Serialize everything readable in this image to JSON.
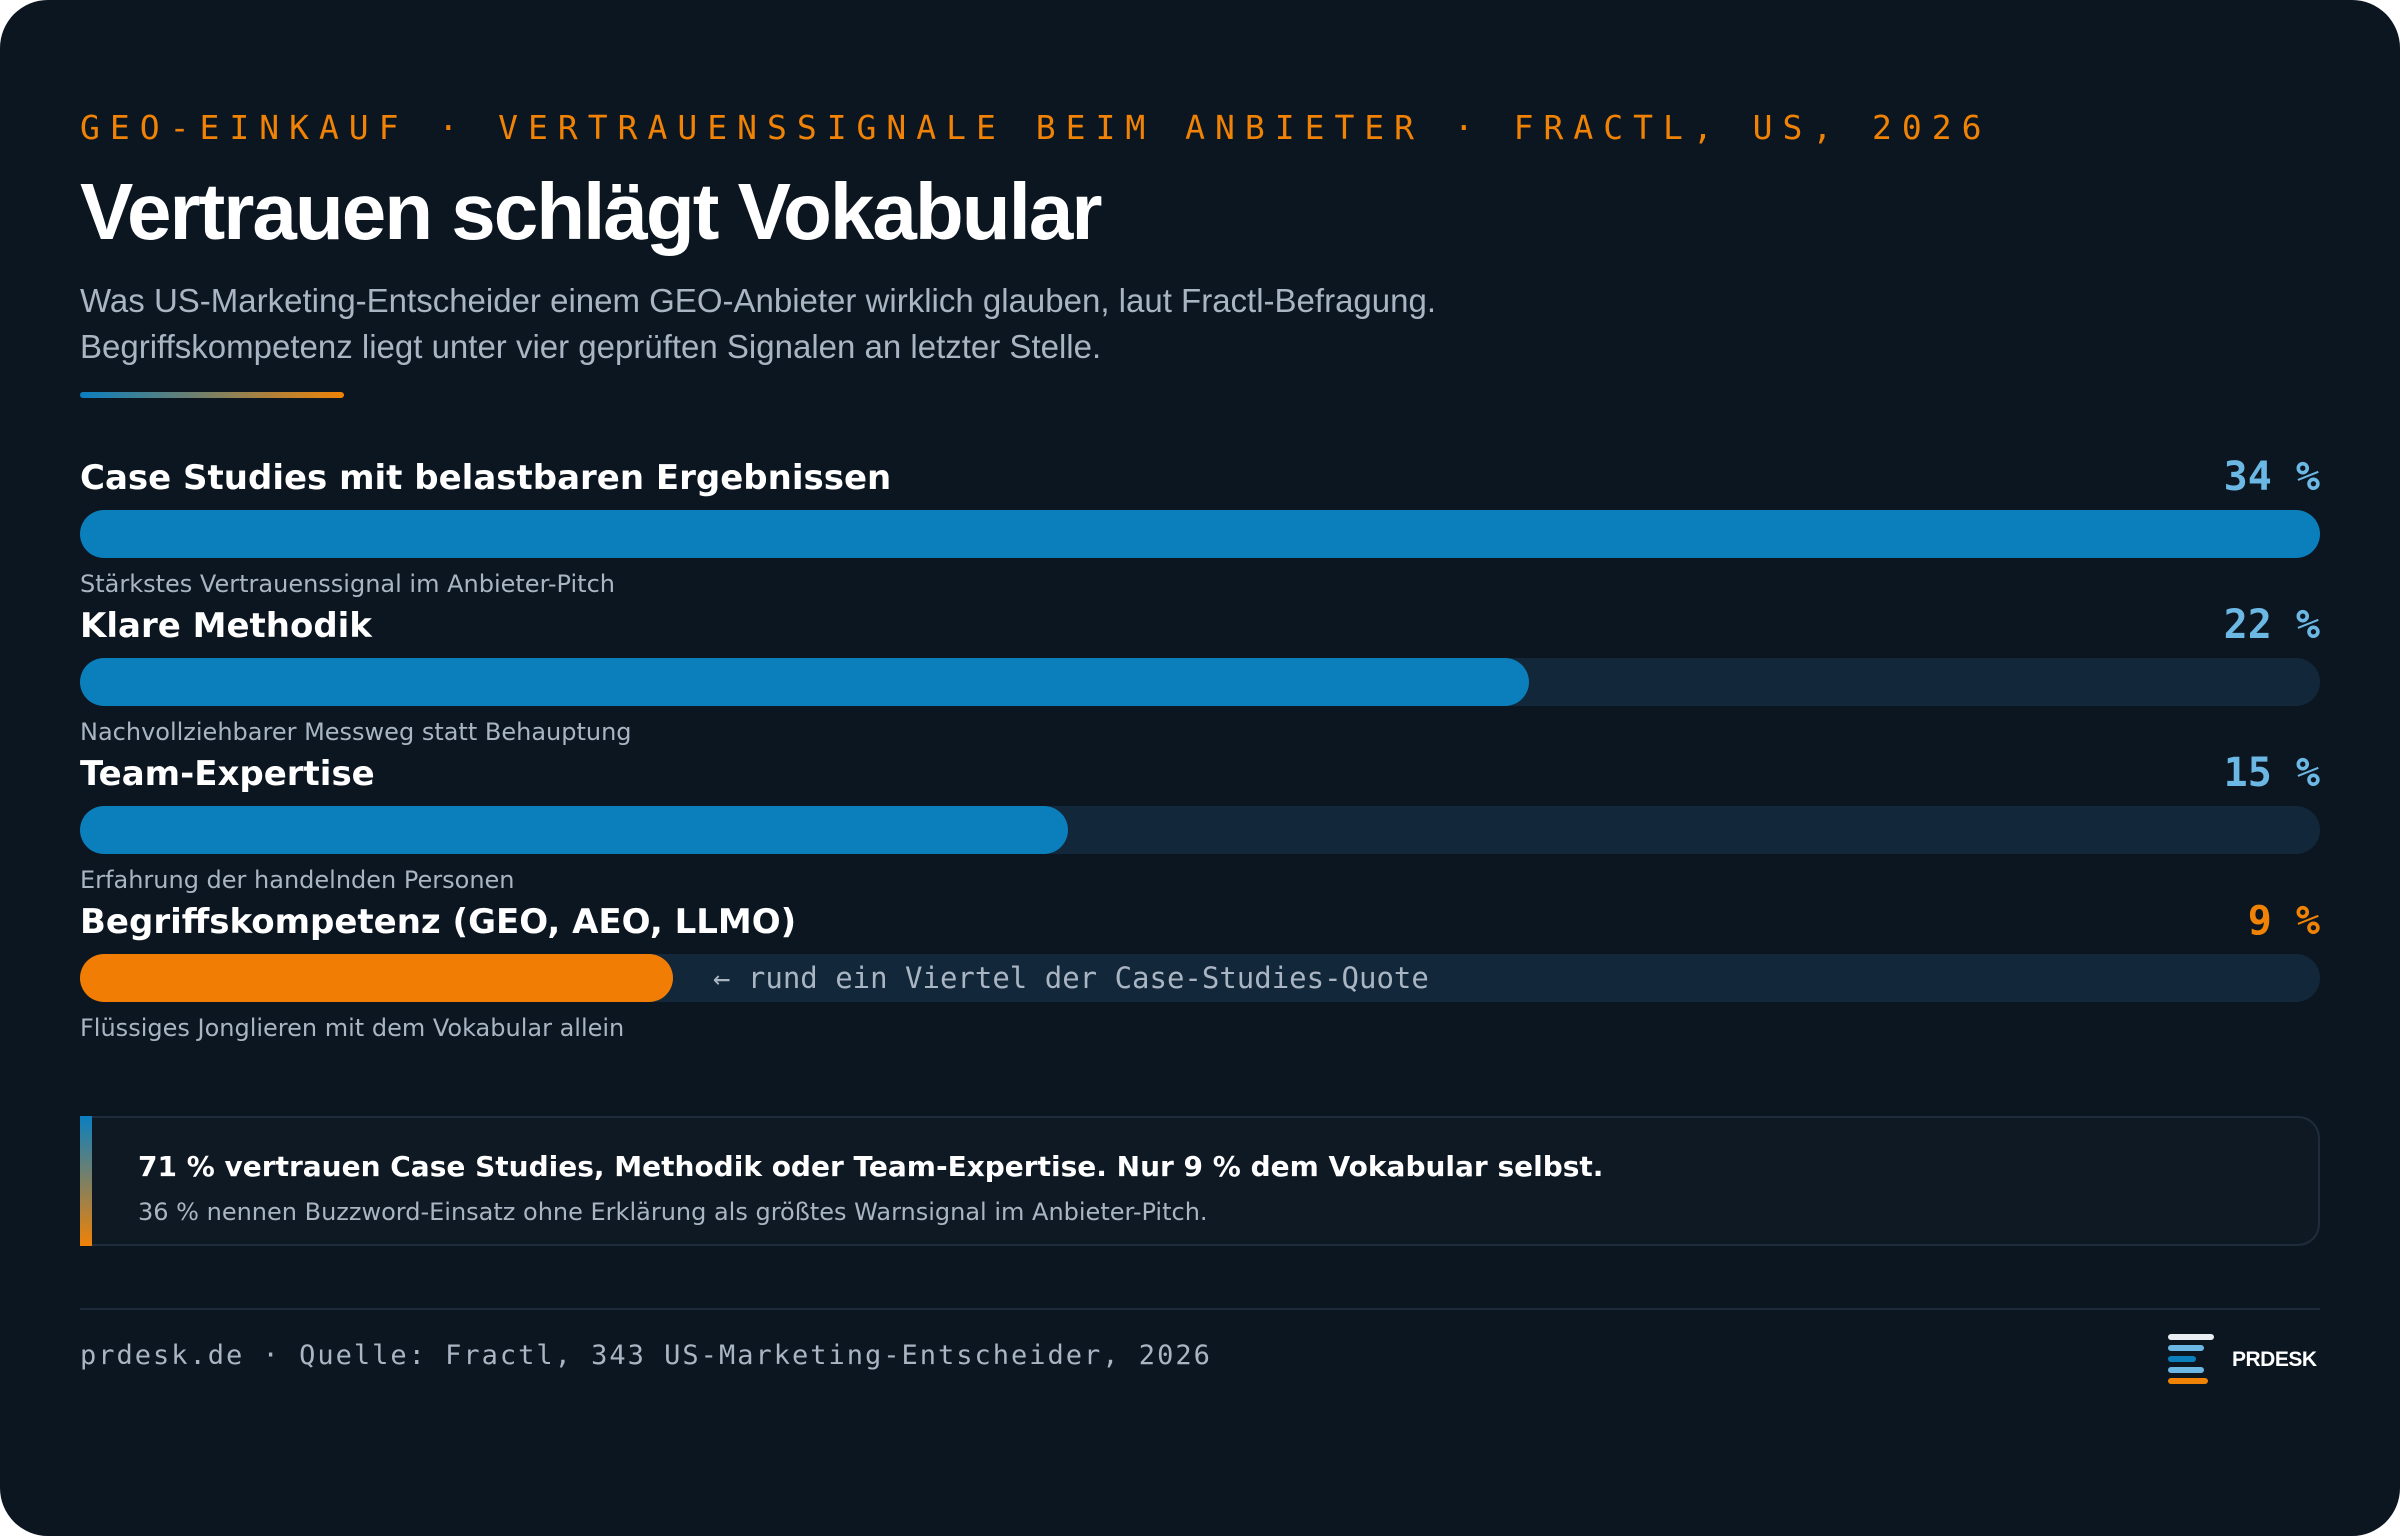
{
  "header": {
    "kicker": "GEO-EINKAUF · VERTRAUENSSIGNALE BEIM ANBIETER · FRACTL, US, 2026",
    "title": "Vertrauen schlägt Vokabular",
    "subtitle_lines": [
      "Was US-Marketing-Entscheider einem GEO-Anbieter wirklich glauben, laut Fractl-Befragung.",
      "Begriffskompetenz liegt unter vier geprüften Signalen an letzter Stelle."
    ]
  },
  "chart_data": {
    "type": "bar",
    "orientation": "horizontal",
    "unit": "%",
    "xlim": [
      0,
      34
    ],
    "categories": [
      "Case Studies mit belastbaren Ergebnissen",
      "Klare Methodik",
      "Team-Expertise",
      "Begriffskompetenz (GEO, AEO, LLMO)"
    ],
    "values": [
      34,
      22,
      15,
      9
    ],
    "value_labels": [
      "34 %",
      "22 %",
      "15 %",
      "9 %"
    ],
    "descriptions": [
      "Stärkstes Vertrauenssignal im Anbieter-Pitch",
      "Nachvollziehbarer Messweg statt Behauptung",
      "Erfahrung der handelnden Personen",
      "Flüssiges Jonglieren mit dem Vokabular allein"
    ],
    "highlight_index": 3,
    "annotation": {
      "bar_index": 3,
      "text": "← rund ein Viertel der Case-Studies-Quote"
    },
    "colors": {
      "bar": "#0a7fbc",
      "highlight": "#f27d05",
      "track": "#13273a",
      "value": "#6cb8e4"
    }
  },
  "callout": {
    "main": "71  % vertrauen Case Studies, Methodik oder Team-Expertise. Nur 9  % dem Vokabular selbst.",
    "sub": "36  % nennen Buzzword-Einsatz ohne Erklärung als größtes Warnsignal im Anbieter-Pitch."
  },
  "footer": {
    "source": "prdesk.de · Quelle: Fractl, 343 US-Marketing-Entscheider, 2026",
    "logo_text": "PRDESK",
    "logo_icon": "stacked-lines-logo-icon"
  },
  "colors": {
    "background": "#0c1621",
    "accent_orange": "#f08206",
    "accent_blue": "#0a7fbc",
    "text_muted": "#a9b5c3"
  }
}
